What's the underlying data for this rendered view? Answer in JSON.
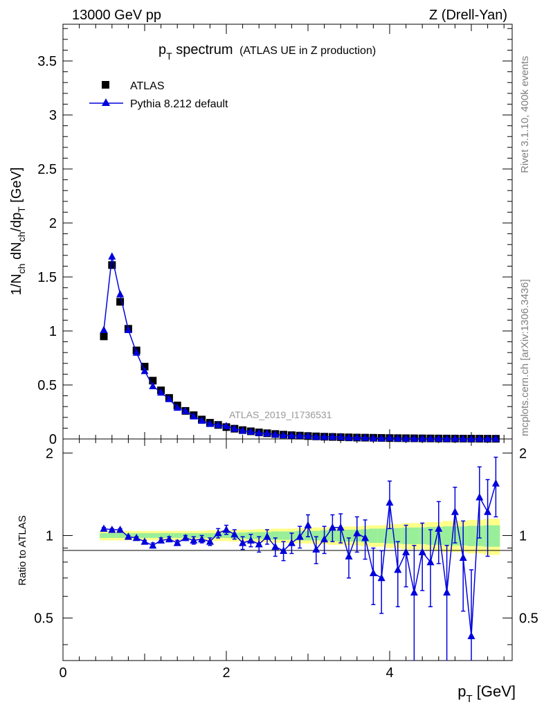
{
  "header": {
    "left_label": "13000 GeV pp",
    "right_label": "Z (Drell-Yan)"
  },
  "side_labels": {
    "rivet": "Rivet 3.1.10,  400k events",
    "mcplots": "mcplots.cern.ch [arXiv:1306.3436]"
  },
  "watermark": "ATLAS_2019_I1736531",
  "colors": {
    "data_marker": "#000000",
    "mc_line": "#0000dd",
    "band_inner": "#99ee99",
    "band_outer": "#ffff88",
    "axis": "#000000",
    "side_text": "#808080"
  },
  "chart_data": {
    "type": "scatter",
    "title_main": "p",
    "title_sub": "T",
    "title_word": " spectrum",
    "title_paren": "(ATLAS UE in Z production)",
    "ylabel_main": "1/N",
    "ylabel_sub_ch": "ch",
    "ylabel_dN": " dN",
    "ylabel_dp": "/dp",
    "ylabel_sub_T": "T",
    "ylabel_unit": " [GeV]",
    "ratio_ylabel": "Ratio to ATLAS",
    "xlabel_main": "p",
    "xlabel_sub": "T",
    "xlabel_unit": " [GeV]",
    "xlim": [
      0,
      5.5
    ],
    "ylim": [
      0,
      3.84
    ],
    "ratio_ylim": [
      0.35,
      2.25
    ],
    "x_ticks": [
      "0",
      "2",
      "4"
    ],
    "x_tick_values": [
      0,
      2,
      4
    ],
    "y_ticks": [
      "0",
      "0.5",
      "1",
      "1.5",
      "2",
      "2.5",
      "3",
      "3.5"
    ],
    "y_tick_values": [
      0,
      0.5,
      1,
      1.5,
      2,
      2.5,
      3,
      3.5
    ],
    "ratio_ticks": [
      "0.5",
      "1",
      "2"
    ],
    "ratio_tick_values": [
      0.5,
      1,
      2
    ],
    "legend": [
      "ATLAS",
      "Pythia 8.212 default"
    ],
    "series": [
      {
        "name": "ATLAS",
        "x": [
          0.5,
          0.6,
          0.7,
          0.8,
          0.9,
          1.0,
          1.1,
          1.2,
          1.3,
          1.4,
          1.5,
          1.6,
          1.7,
          1.8,
          1.9,
          2.0,
          2.1,
          2.2,
          2.3,
          2.4,
          2.5,
          2.6,
          2.7,
          2.8,
          2.9,
          3.0,
          3.1,
          3.2,
          3.3,
          3.4,
          3.5,
          3.6,
          3.7,
          3.8,
          3.9,
          4.0,
          4.1,
          4.2,
          4.3,
          4.4,
          4.5,
          4.6,
          4.7,
          4.8,
          4.9,
          5.0,
          5.1,
          5.2,
          5.3
        ],
        "values": [
          0.95,
          1.61,
          1.27,
          1.02,
          0.82,
          0.67,
          0.54,
          0.45,
          0.38,
          0.31,
          0.26,
          0.22,
          0.18,
          0.15,
          0.13,
          0.11,
          0.095,
          0.082,
          0.071,
          0.061,
          0.053,
          0.046,
          0.04,
          0.035,
          0.031,
          0.027,
          0.024,
          0.021,
          0.019,
          0.017,
          0.015,
          0.013,
          0.012,
          0.011,
          0.0095,
          0.0085,
          0.0076,
          0.0068,
          0.0061,
          0.0055,
          0.0049,
          0.0044,
          0.004,
          0.0036,
          0.0032,
          0.0029,
          0.0026,
          0.0023,
          0.0021
        ]
      },
      {
        "name": "Pythia 8.212 default",
        "x": [
          0.5,
          0.6,
          0.7,
          0.8,
          0.9,
          1.0,
          1.1,
          1.2,
          1.3,
          1.4,
          1.5,
          1.6,
          1.7,
          1.8,
          1.9,
          2.0,
          2.1,
          2.2,
          2.3,
          2.4,
          2.5,
          2.6,
          2.7,
          2.8,
          2.9,
          3.0,
          3.1,
          3.2,
          3.3,
          3.4,
          3.5,
          3.6,
          3.7,
          3.8,
          3.9,
          4.0,
          4.1,
          4.2,
          4.3,
          4.4,
          4.5,
          4.6,
          4.7,
          4.8,
          4.9,
          5.0,
          5.1,
          5.2,
          5.3
        ],
        "values": [
          1.01,
          1.69,
          1.34,
          1.01,
          0.8,
          0.63,
          0.49,
          0.43,
          0.37,
          0.29,
          0.26,
          0.21,
          0.17,
          0.14,
          0.13,
          0.12,
          0.096,
          0.077,
          0.068,
          0.056,
          0.052,
          0.042,
          0.035,
          0.033,
          0.031,
          0.03,
          0.021,
          0.02,
          0.021,
          0.019,
          0.0126,
          0.0134,
          0.0118,
          0.008,
          0.0067,
          0.0112,
          0.0057,
          0.0059,
          0.0038,
          0.0048,
          0.0039,
          0.0047,
          0.0025,
          0.0044,
          0.0027,
          0.0013,
          0.0036,
          0.0028,
          0.0033
        ]
      }
    ],
    "ratio": {
      "x": [
        0.5,
        0.6,
        0.7,
        0.8,
        0.9,
        1.0,
        1.1,
        1.2,
        1.3,
        1.4,
        1.5,
        1.6,
        1.7,
        1.8,
        1.9,
        2.0,
        2.1,
        2.2,
        2.3,
        2.4,
        2.5,
        2.6,
        2.7,
        2.8,
        2.9,
        3.0,
        3.1,
        3.2,
        3.3,
        3.4,
        3.5,
        3.6,
        3.7,
        3.8,
        3.9,
        4.0,
        4.1,
        4.2,
        4.3,
        4.4,
        4.5,
        4.6,
        4.7,
        4.8,
        4.9,
        5.0,
        5.1,
        5.2,
        5.3
      ],
      "values": [
        1.06,
        1.05,
        1.05,
        0.99,
        0.98,
        0.95,
        0.92,
        0.96,
        0.97,
        0.94,
        0.98,
        0.96,
        0.97,
        0.95,
        1.02,
        1.05,
        1.01,
        0.94,
        0.96,
        0.93,
        0.99,
        0.91,
        0.88,
        0.94,
        0.99,
        1.09,
        0.89,
        0.97,
        1.07,
        1.07,
        0.84,
        1.02,
        0.98,
        0.73,
        0.7,
        1.32,
        0.75,
        0.87,
        0.62,
        0.87,
        0.8,
        1.06,
        0.62,
        1.22,
        0.83,
        0.43,
        1.38,
        1.22,
        1.55
      ],
      "errors": [
        0.01,
        0.01,
        0.01,
        0.01,
        0.01,
        0.01,
        0.02,
        0.02,
        0.02,
        0.02,
        0.02,
        0.03,
        0.03,
        0.03,
        0.04,
        0.04,
        0.04,
        0.05,
        0.05,
        0.06,
        0.06,
        0.07,
        0.07,
        0.08,
        0.09,
        0.1,
        0.1,
        0.11,
        0.12,
        0.13,
        0.14,
        0.15,
        0.16,
        0.17,
        0.18,
        0.26,
        0.2,
        0.22,
        0.3,
        0.24,
        0.25,
        0.27,
        0.3,
        0.28,
        0.3,
        0.32,
        0.4,
        0.38,
        0.38
      ],
      "band_inner": [
        0.02,
        0.02,
        0.02,
        0.02,
        0.02,
        0.02,
        0.02,
        0.02,
        0.02,
        0.02,
        0.02,
        0.02,
        0.02,
        0.02,
        0.02,
        0.02,
        0.025,
        0.025,
        0.03,
        0.03,
        0.03,
        0.035,
        0.035,
        0.035,
        0.04,
        0.04,
        0.04,
        0.045,
        0.045,
        0.05,
        0.05,
        0.05,
        0.055,
        0.06,
        0.06,
        0.065,
        0.065,
        0.07,
        0.07,
        0.07,
        0.075,
        0.075,
        0.08,
        0.08,
        0.08,
        0.085,
        0.085,
        0.09,
        0.09
      ],
      "band_outer": [
        0.04,
        0.04,
        0.04,
        0.04,
        0.04,
        0.04,
        0.04,
        0.04,
        0.04,
        0.04,
        0.04,
        0.04,
        0.04,
        0.045,
        0.045,
        0.045,
        0.05,
        0.05,
        0.05,
        0.055,
        0.055,
        0.06,
        0.06,
        0.06,
        0.065,
        0.065,
        0.07,
        0.07,
        0.075,
        0.075,
        0.08,
        0.08,
        0.085,
        0.09,
        0.09,
        0.1,
        0.1,
        0.11,
        0.11,
        0.11,
        0.12,
        0.12,
        0.13,
        0.13,
        0.13,
        0.14,
        0.14,
        0.15,
        0.15
      ]
    }
  }
}
